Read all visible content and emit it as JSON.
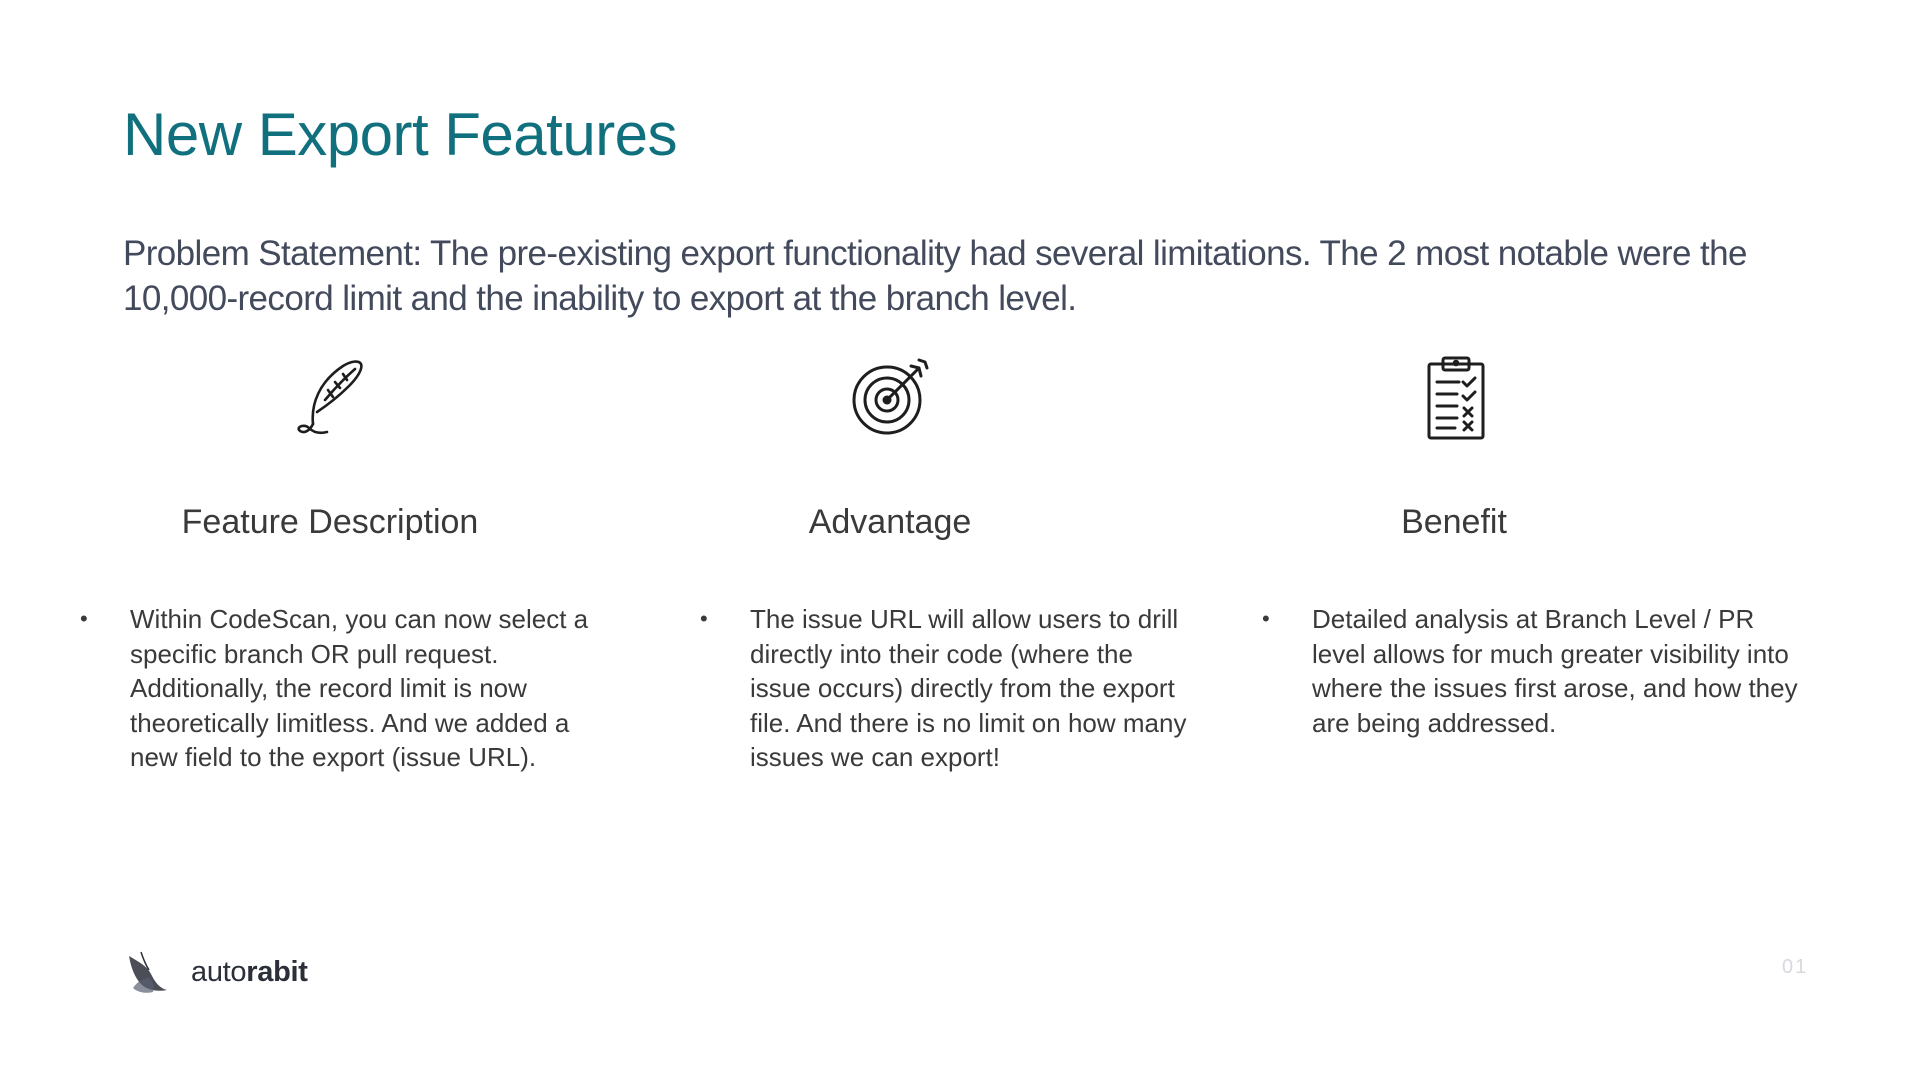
{
  "slide": {
    "title": "New Export Features",
    "problem_statement": "Problem Statement: The pre-existing export functionality had several limitations. The 2 most notable were the 10,000-record limit and the inability to export at the branch level.",
    "page_number": "01"
  },
  "columns": [
    {
      "icon": "feather-quill-icon",
      "heading": "Feature Description",
      "bullet": "•",
      "text": "Within CodeScan, you can now select a specific branch OR pull request. Additionally, the record limit is now theoretically limitless. And we added a new field to the export (issue URL)."
    },
    {
      "icon": "target-arrow-icon",
      "heading": "Advantage",
      "bullet": "•",
      "text": "The issue URL will allow users to drill directly into their code (where the issue occurs) directly from the export file. And there is no limit on how many issues we can export!"
    },
    {
      "icon": "clipboard-checklist-icon",
      "heading": "Benefit",
      "bullet": "•",
      "text": "Detailed analysis at Branch Level / PR level allows for much greater visibility into where the issues first arose, and how they are being addressed."
    }
  ],
  "footer": {
    "logo_text_light": "auto",
    "logo_text_bold": "rabit"
  },
  "colors": {
    "title": "#11707e",
    "problem_text": "#434a5c",
    "body_text": "#3a3a3a",
    "page_number": "#d6d9de"
  }
}
